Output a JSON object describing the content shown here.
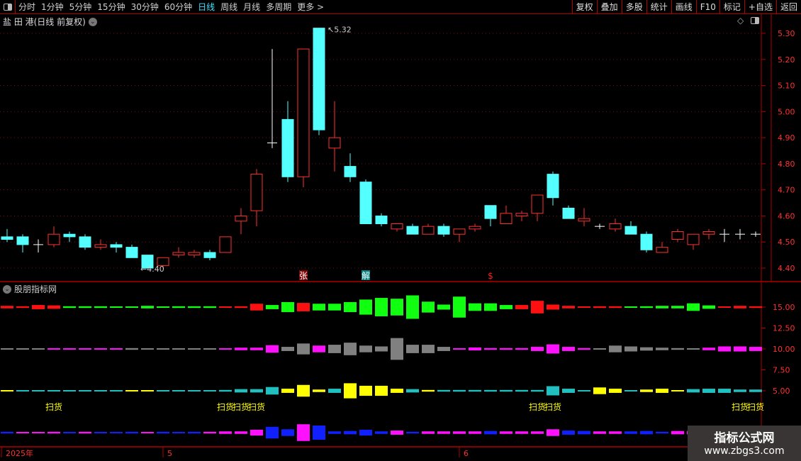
{
  "toolbar": {
    "periods": [
      "分时",
      "1分钟",
      "5分钟",
      "15分钟",
      "30分钟",
      "60分钟",
      "日线",
      "周线",
      "月线",
      "多周期",
      "更多 >"
    ],
    "active": "日线",
    "right_buttons": [
      "复权",
      "叠加",
      "多股",
      "统计",
      "画线",
      "F10",
      "标记",
      "+自选",
      "返回"
    ]
  },
  "stock": {
    "title": "盐 田 港(日线 前复权)"
  },
  "indicator": {
    "title": "股朋指标网",
    "signal_label": "扫货"
  },
  "colors": {
    "up": "#ff3030",
    "down": "#54ffff",
    "bg": "#000000",
    "grid": "#b00000"
  },
  "chart_data": [
    {
      "type": "candlestick",
      "ylim": [
        4.36,
        5.34
      ],
      "yticks": [
        "5.30",
        "5.20",
        "5.10",
        "5.00",
        "4.90",
        "4.80",
        "4.70",
        "4.60",
        "4.50",
        "4.40"
      ],
      "annotations": {
        "high": "5.32",
        "low": "4.40"
      },
      "markers": [
        {
          "index": 19,
          "text": "张"
        },
        {
          "index": 23,
          "text": "解"
        },
        {
          "index": 31,
          "text": "$"
        }
      ],
      "x_labels": [
        {
          "index": 0,
          "text": "2025年"
        },
        {
          "index": 10,
          "text": "5"
        },
        {
          "index": 29,
          "text": "6"
        }
      ],
      "ohlc": [
        [
          4.52,
          4.55,
          4.5,
          4.51
        ],
        [
          4.52,
          4.53,
          4.46,
          4.49
        ],
        [
          4.49,
          4.51,
          4.46,
          4.49
        ],
        [
          4.49,
          4.56,
          4.48,
          4.53
        ],
        [
          4.53,
          4.54,
          4.5,
          4.52
        ],
        [
          4.52,
          4.53,
          4.47,
          4.48
        ],
        [
          4.48,
          4.51,
          4.47,
          4.49
        ],
        [
          4.49,
          4.5,
          4.46,
          4.48
        ],
        [
          4.48,
          4.49,
          4.44,
          4.44
        ],
        [
          4.45,
          4.45,
          4.4,
          4.4
        ],
        [
          4.41,
          4.44,
          4.4,
          4.44
        ],
        [
          4.45,
          4.48,
          4.44,
          4.46
        ],
        [
          4.45,
          4.47,
          4.44,
          4.46
        ],
        [
          4.46,
          4.47,
          4.43,
          4.44
        ],
        [
          4.46,
          4.52,
          4.46,
          4.52
        ],
        [
          4.58,
          4.63,
          4.53,
          4.6
        ],
        [
          4.62,
          4.78,
          4.56,
          4.76
        ],
        [
          4.88,
          5.24,
          4.86,
          4.88
        ],
        [
          4.97,
          5.04,
          4.73,
          4.75
        ],
        [
          4.75,
          5.24,
          4.71,
          5.24
        ],
        [
          5.32,
          5.32,
          4.91,
          4.93
        ],
        [
          4.86,
          5.04,
          4.77,
          4.9
        ],
        [
          4.79,
          4.84,
          4.73,
          4.75
        ],
        [
          4.73,
          4.74,
          4.57,
          4.57
        ],
        [
          4.6,
          4.61,
          4.56,
          4.57
        ],
        [
          4.55,
          4.57,
          4.54,
          4.57
        ],
        [
          4.56,
          4.57,
          4.53,
          4.53
        ],
        [
          4.53,
          4.57,
          4.53,
          4.56
        ],
        [
          4.56,
          4.57,
          4.52,
          4.53
        ],
        [
          4.53,
          4.55,
          4.5,
          4.55
        ],
        [
          4.55,
          4.57,
          4.54,
          4.56
        ],
        [
          4.64,
          4.64,
          4.56,
          4.59
        ],
        [
          4.57,
          4.64,
          4.57,
          4.61
        ],
        [
          4.6,
          4.62,
          4.58,
          4.61
        ],
        [
          4.61,
          4.68,
          4.58,
          4.68
        ],
        [
          4.76,
          4.77,
          4.64,
          4.67
        ],
        [
          4.63,
          4.64,
          4.59,
          4.59
        ],
        [
          4.58,
          4.63,
          4.56,
          4.59
        ],
        [
          4.56,
          4.57,
          4.55,
          4.56
        ],
        [
          4.55,
          4.59,
          4.54,
          4.57
        ],
        [
          4.56,
          4.58,
          4.53,
          4.53
        ],
        [
          4.53,
          4.54,
          4.46,
          4.47
        ],
        [
          4.46,
          4.5,
          4.46,
          4.48
        ],
        [
          4.51,
          4.55,
          4.5,
          4.54
        ],
        [
          4.49,
          4.53,
          4.47,
          4.53
        ],
        [
          4.53,
          4.55,
          4.51,
          4.54
        ],
        [
          4.53,
          4.55,
          4.5,
          4.53
        ],
        [
          4.53,
          4.55,
          4.51,
          4.53
        ],
        [
          4.53,
          4.54,
          4.52,
          4.53
        ]
      ]
    },
    {
      "type": "bar",
      "yticks": [
        "15.00",
        "12.50",
        "10.00",
        "7.50",
        "5.00"
      ],
      "series": [
        {
          "base": 15.0,
          "pos": "#ff1010",
          "neg": "#10ff10",
          "values": [
            0.3,
            0.2,
            0.5,
            0.4,
            -0.2,
            -0.2,
            -0.2,
            -0.1,
            -0.1,
            -0.3,
            -0.1,
            -0.2,
            -0.2,
            -0.2,
            0.1,
            0.2,
            0.8,
            -0.5,
            -1.2,
            1.0,
            -0.8,
            -0.8,
            -1.2,
            -1.8,
            -2.2,
            -2.0,
            -2.8,
            -1.3,
            -0.6,
            -2.5,
            -0.9,
            -0.9,
            -0.5,
            0.5,
            1.5,
            0.6,
            0.3,
            0.1,
            0.2,
            0.2,
            -0.1,
            -0.2,
            -0.3,
            -0.3,
            -0.9,
            -0.4,
            0.1,
            0.3,
            0.2
          ]
        },
        {
          "base": 10.0,
          "pos": "#ff10ff",
          "neg": "#808080",
          "values": [
            -0.1,
            -0.1,
            -0.1,
            0.15,
            0.15,
            0.15,
            0.15,
            0.15,
            -0.2,
            -0.1,
            -0.1,
            -0.1,
            -0.1,
            -0.1,
            0.1,
            0.3,
            0.3,
            0.9,
            -0.5,
            -1.3,
            0.8,
            -1.0,
            -1.5,
            -0.8,
            -0.6,
            -2.6,
            -1.0,
            -1.0,
            -0.5,
            0.15,
            0.35,
            0.2,
            0.2,
            0.2,
            0.5,
            1.1,
            0.5,
            0.2,
            -0.1,
            -0.8,
            -0.6,
            -0.4,
            -0.3,
            -0.2,
            -0.1,
            0.3,
            0.6,
            0.6,
            0.5
          ]
        },
        {
          "base": 5.0,
          "pos": "#20c0c0",
          "neg": "#ffff00",
          "values": [
            -0.1,
            0.15,
            0.15,
            0.15,
            0.15,
            0.15,
            0.15,
            0.15,
            -0.1,
            -0.1,
            0.15,
            0.15,
            0.15,
            0.15,
            0.2,
            0.4,
            0.4,
            0.9,
            -0.5,
            -1.4,
            -0.3,
            0.5,
            -1.8,
            -1.2,
            -1.2,
            -0.5,
            0.4,
            -0.2,
            0.2,
            0.2,
            0.2,
            0.2,
            0.2,
            0.2,
            0.2,
            1.1,
            0.5,
            0.1,
            -0.8,
            -0.5,
            0.1,
            -0.3,
            -0.5,
            -0.1,
            0.4,
            0.5,
            0.5,
            0.3,
            0.3
          ]
        },
        {
          "base": 0.0,
          "pos": "#ff10ff",
          "neg": "#1020ff",
          "values": [
            -0.2,
            0.1,
            0.1,
            0.2,
            -0.1,
            0.2,
            -0.1,
            -0.1,
            -0.2,
            0.1,
            -0.2,
            -0.1,
            -0.2,
            0.2,
            0.3,
            0.3,
            0.7,
            -1.4,
            -0.8,
            2.0,
            -1.7,
            -0.3,
            -0.4,
            -0.7,
            -0.3,
            0.5,
            -0.2,
            0.3,
            0.3,
            0.3,
            0.3,
            -0.4,
            0.3,
            0.3,
            0.3,
            0.8,
            -0.5,
            -0.4,
            0.3,
            0.3,
            -0.3,
            -0.4,
            -0.2,
            0.4,
            0.4,
            0.4,
            0.4,
            0.3,
            0.3
          ]
        }
      ],
      "signals": [
        3,
        14,
        15,
        16,
        34,
        35,
        47,
        48
      ]
    }
  ],
  "watermark": {
    "line1": "指标公式网",
    "line2": "www.zbgs3.com"
  }
}
